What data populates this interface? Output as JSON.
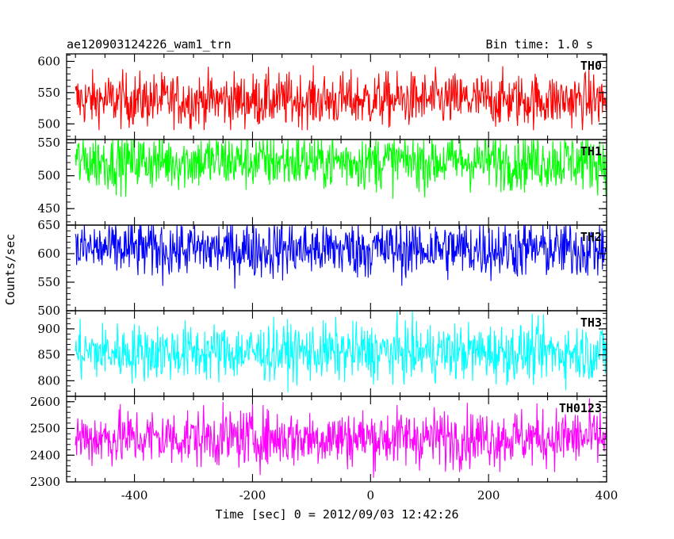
{
  "header": {
    "left_title": "ae120903124226_wam1_trn",
    "right_title": "Bin time: 1.0 s"
  },
  "chart_data": {
    "type": "line",
    "xlabel": "Time [sec] 0 = 2012/09/03 12:42:26",
    "ylabel": "Counts/sec",
    "xlim": [
      -515,
      400
    ],
    "xticks": [
      -400,
      -200,
      0,
      200,
      400
    ],
    "panels": [
      {
        "name": "TH0",
        "color": "#ff0000",
        "ylim": [
          475,
          612
        ],
        "yticks": [
          500,
          550,
          600
        ],
        "mean": 538,
        "spread": 22,
        "min": 490,
        "max": 612
      },
      {
        "name": "TH1",
        "color": "#00ff00",
        "ylim": [
          425,
          555
        ],
        "yticks": [
          450,
          500,
          550
        ],
        "mean": 522,
        "spread": 22,
        "min": 432,
        "max": 555
      },
      {
        "name": "TH2",
        "color": "#0000ff",
        "ylim": [
          500,
          650
        ],
        "yticks": [
          500,
          550,
          600,
          650
        ],
        "mean": 608,
        "spread": 26,
        "min": 508,
        "max": 650
      },
      {
        "name": "TH3",
        "color": "#00ffff",
        "ylim": [
          770,
          935
        ],
        "yticks": [
          800,
          850,
          900
        ],
        "mean": 855,
        "spread": 28,
        "min": 778,
        "max": 935
      },
      {
        "name": "TH0123",
        "color": "#ff00ff",
        "ylim": [
          2300,
          2620
        ],
        "yticks": [
          2300,
          2400,
          2500,
          2600
        ],
        "mean": 2465,
        "spread": 55,
        "min": 2300,
        "max": 2615
      }
    ]
  }
}
